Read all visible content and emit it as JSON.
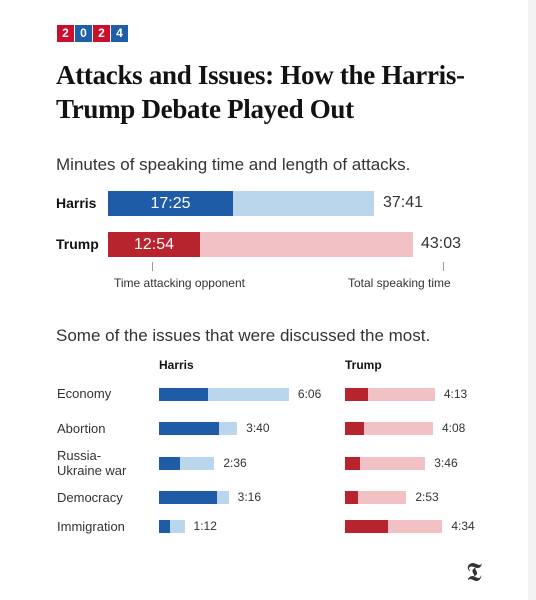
{
  "badge": {
    "digits": [
      "2",
      "0",
      "2",
      "4"
    ],
    "colors": [
      "#c8102e",
      "#1f5ea8",
      "#c8102e",
      "#1f5ea8"
    ]
  },
  "headline": "Attacks and Issues: How the Harris-Trump Debate Played Out",
  "speaking": {
    "subtitle": "Minutes of speaking time and length of attacks.",
    "rows": [
      {
        "name": "Harris",
        "attack": "17:25",
        "total": "37:41",
        "attack_color": "#1e5ca8",
        "total_color": "#b9d6ec"
      },
      {
        "name": "Trump",
        "attack": "12:54",
        "total": "43:03",
        "attack_color": "#b8242d",
        "total_color": "#f1c1c5"
      }
    ],
    "caption_attack": "Time attacking opponent",
    "caption_total": "Total speaking time"
  },
  "issues": {
    "subtitle": "Some of the issues that were discussed the most.",
    "col_harris": "Harris",
    "col_trump": "Trump",
    "rows": [
      {
        "issue": "Economy",
        "harris_total": "6:06",
        "trump_total": "4:13"
      },
      {
        "issue": "Abortion",
        "harris_total": "3:40",
        "trump_total": "4:08"
      },
      {
        "issue": "Russia-\nUkraine war",
        "harris_total": "2:36",
        "trump_total": "3:46"
      },
      {
        "issue": "Democracy",
        "harris_total": "3:16",
        "trump_total": "2:53"
      },
      {
        "issue": "Immigration",
        "harris_total": "1:12",
        "trump_total": "4:34"
      }
    ]
  },
  "chart_data": {
    "type": "bar",
    "series_speaking": [
      {
        "name": "Harris",
        "attack_minutes": 17.42,
        "total_minutes": 37.68
      },
      {
        "name": "Trump",
        "attack_minutes": 12.9,
        "total_minutes": 43.05
      }
    ],
    "issues": {
      "categories": [
        "Economy",
        "Abortion",
        "Russia-Ukraine war",
        "Democracy",
        "Immigration"
      ],
      "harris_total_minutes": [
        6.1,
        3.67,
        2.6,
        3.27,
        1.2
      ],
      "harris_attack_minutes": [
        2.3,
        2.8,
        1.0,
        2.7,
        0.5
      ],
      "trump_total_minutes": [
        4.22,
        4.13,
        3.77,
        2.88,
        4.57
      ],
      "trump_attack_minutes": [
        1.1,
        0.9,
        0.7,
        0.6,
        2.0
      ]
    }
  },
  "logo": "𝕿"
}
